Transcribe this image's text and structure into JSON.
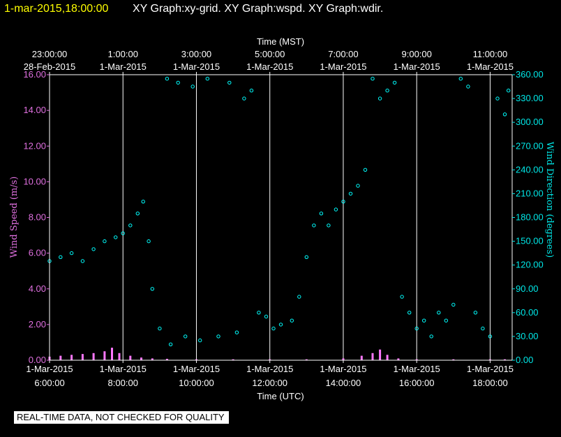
{
  "header": {
    "date": "1-mar-2015,18:00:00",
    "rest": "XY Graph:xy-grid.  XY Graph:wspd.  XY Graph:wdir."
  },
  "footer": {
    "quality_note": "REAL-TIME DATA, NOT CHECKED FOR QUALITY"
  },
  "colors": {
    "wspd": "#ff77ff",
    "wdir": "#00ffff",
    "grid": "#ffffff",
    "background": "#000000"
  },
  "chart_data": {
    "type": "scatter",
    "top_axis_title": "Time (MST)",
    "bottom_axis_title": "Time (UTC)",
    "left_axis_title": "Wind Speed (m/s)",
    "right_axis_title": "Wind Direction (degrees)",
    "bottom_ticks": [
      {
        "time": "6:00:00",
        "date": "1-Mar-2015"
      },
      {
        "time": "8:00:00",
        "date": "1-Mar-2015"
      },
      {
        "time": "10:00:00",
        "date": "1-Mar-2015"
      },
      {
        "time": "12:00:00",
        "date": "1-Mar-2015"
      },
      {
        "time": "14:00:00",
        "date": "1-Mar-2015"
      },
      {
        "time": "16:00:00",
        "date": "1-Mar-2015"
      },
      {
        "time": "18:00:00",
        "date": "1-Mar-2015"
      }
    ],
    "top_ticks": [
      {
        "time": "23:00:00",
        "date": "28-Feb-2015"
      },
      {
        "time": "1:00:00",
        "date": "1-Mar-2015"
      },
      {
        "time": "3:00:00",
        "date": "1-Mar-2015"
      },
      {
        "time": "5:00:00",
        "date": "1-Mar-2015"
      },
      {
        "time": "7:00:00",
        "date": "1-Mar-2015"
      },
      {
        "time": "9:00:00",
        "date": "1-Mar-2015"
      },
      {
        "time": "11:00:00",
        "date": "1-Mar-2015"
      }
    ],
    "xlim_utc_hours": [
      6,
      18.6
    ],
    "left_ticks": [
      "0.00",
      "2.00",
      "4.00",
      "6.00",
      "8.00",
      "10.00",
      "12.00",
      "14.00",
      "16.00"
    ],
    "left_ylim": [
      0,
      16
    ],
    "right_ticks": [
      "0.00",
      "30.00",
      "60.00",
      "90.00",
      "120.00",
      "150.00",
      "180.00",
      "210.00",
      "240.00",
      "270.00",
      "300.00",
      "330.00",
      "360.00"
    ],
    "right_ylim": [
      0,
      360
    ],
    "grid": "vertical",
    "series": [
      {
        "key": "wspd",
        "points": [
          [
            6.0,
            0.2
          ],
          [
            6.3,
            0.25
          ],
          [
            6.6,
            0.3
          ],
          [
            6.9,
            0.35
          ],
          [
            7.2,
            0.4
          ],
          [
            7.5,
            0.5
          ],
          [
            7.7,
            0.7
          ],
          [
            7.9,
            0.4
          ],
          [
            8.2,
            0.25
          ],
          [
            8.5,
            0.15
          ],
          [
            8.8,
            0.1
          ],
          [
            9.2,
            0.08
          ],
          [
            10.0,
            0.05
          ],
          [
            11.0,
            0.05
          ],
          [
            12.0,
            0.05
          ],
          [
            13.0,
            0.05
          ],
          [
            14.0,
            0.1
          ],
          [
            14.5,
            0.25
          ],
          [
            14.8,
            0.4
          ],
          [
            15.0,
            0.6
          ],
          [
            15.2,
            0.3
          ],
          [
            15.5,
            0.1
          ],
          [
            16.0,
            0.05
          ],
          [
            17.0,
            0.05
          ],
          [
            18.0,
            0.05
          ],
          [
            18.4,
            0.05
          ]
        ]
      },
      {
        "key": "wdir",
        "points": [
          [
            6.0,
            125
          ],
          [
            6.3,
            130
          ],
          [
            6.6,
            135
          ],
          [
            6.9,
            125
          ],
          [
            7.2,
            140
          ],
          [
            7.5,
            150
          ],
          [
            7.8,
            155
          ],
          [
            8.0,
            160
          ],
          [
            8.2,
            170
          ],
          [
            8.4,
            185
          ],
          [
            8.55,
            200
          ],
          [
            8.7,
            150
          ],
          [
            8.8,
            90
          ],
          [
            9.0,
            40
          ],
          [
            9.2,
            355
          ],
          [
            9.3,
            20
          ],
          [
            9.5,
            350
          ],
          [
            9.7,
            30
          ],
          [
            9.9,
            345
          ],
          [
            10.1,
            25
          ],
          [
            10.3,
            355
          ],
          [
            10.6,
            30
          ],
          [
            10.9,
            350
          ],
          [
            11.1,
            35
          ],
          [
            11.3,
            330
          ],
          [
            11.5,
            340
          ],
          [
            11.7,
            60
          ],
          [
            11.9,
            55
          ],
          [
            12.1,
            40
          ],
          [
            12.3,
            45
          ],
          [
            12.6,
            50
          ],
          [
            12.8,
            80
          ],
          [
            13.0,
            130
          ],
          [
            13.2,
            170
          ],
          [
            13.4,
            185
          ],
          [
            13.6,
            170
          ],
          [
            13.8,
            190
          ],
          [
            14.0,
            200
          ],
          [
            14.2,
            210
          ],
          [
            14.4,
            220
          ],
          [
            14.6,
            240
          ],
          [
            14.8,
            355
          ],
          [
            15.0,
            330
          ],
          [
            15.2,
            340
          ],
          [
            15.4,
            350
          ],
          [
            15.6,
            80
          ],
          [
            15.8,
            60
          ],
          [
            16.0,
            40
          ],
          [
            16.2,
            50
          ],
          [
            16.4,
            30
          ],
          [
            16.6,
            60
          ],
          [
            16.8,
            50
          ],
          [
            17.0,
            70
          ],
          [
            17.2,
            355
          ],
          [
            17.4,
            345
          ],
          [
            17.6,
            60
          ],
          [
            17.8,
            40
          ],
          [
            18.0,
            30
          ],
          [
            18.2,
            330
          ],
          [
            18.4,
            310
          ],
          [
            18.5,
            340
          ]
        ]
      }
    ]
  }
}
